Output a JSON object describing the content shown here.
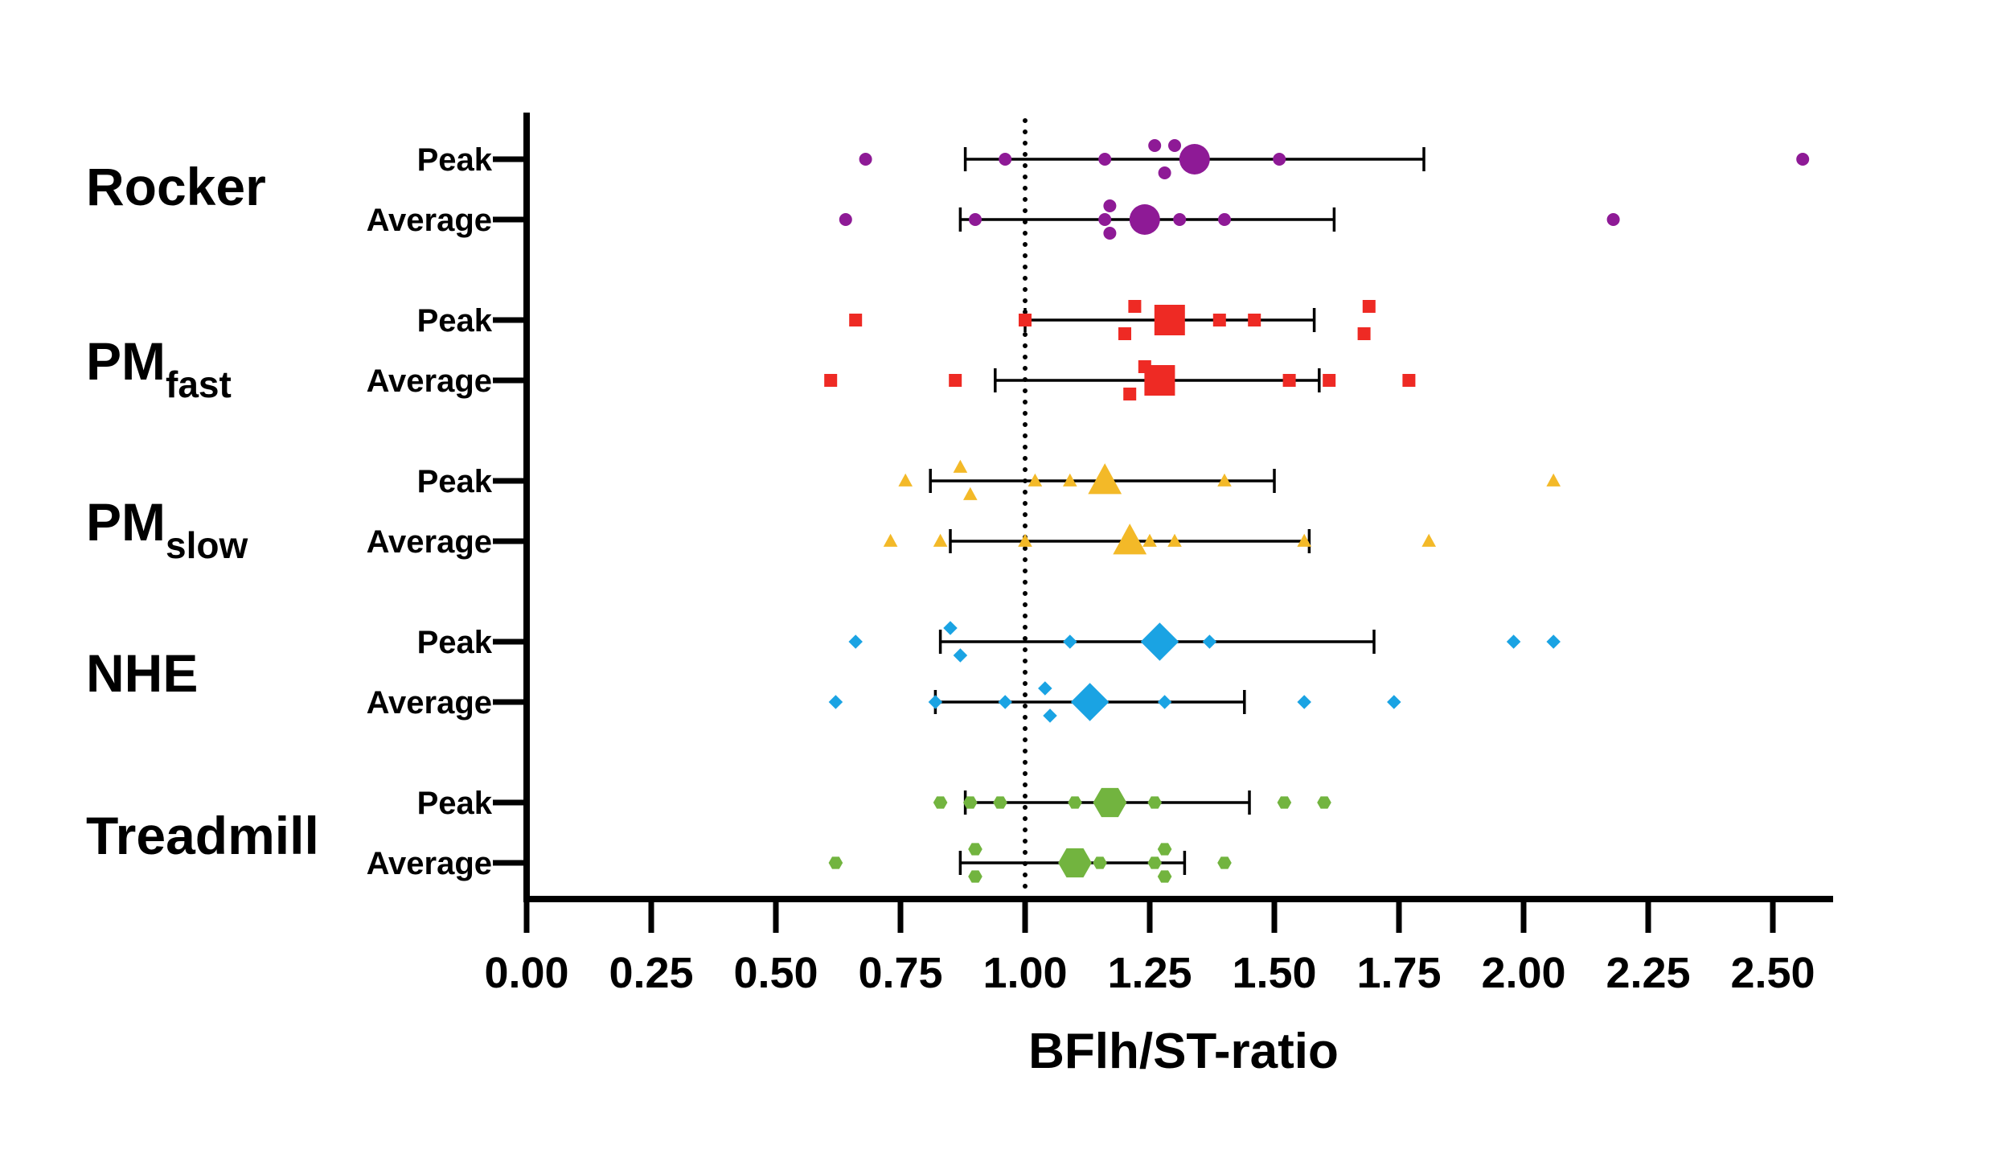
{
  "chart_data": {
    "type": "scatter",
    "xlabel": "BFlh/ST-ratio",
    "xlim": [
      0,
      2.6
    ],
    "xticks": [
      0.0,
      0.25,
      0.5,
      0.75,
      1.0,
      1.25,
      1.5,
      1.75,
      2.0,
      2.25,
      2.5
    ],
    "xtick_labels": [
      "0.00",
      "0.25",
      "0.50",
      "0.75",
      "1.00",
      "1.25",
      "1.50",
      "1.75",
      "2.00",
      "2.25",
      "2.50"
    ],
    "reference_line": 1.0,
    "groups": [
      {
        "label": "Rocker",
        "label_sub": "",
        "color": "#8e1a96",
        "marker": "circle",
        "rows": [
          {
            "label": "Peak",
            "mean": 1.34,
            "lower": 0.88,
            "upper": 1.8,
            "points": [
              0.68,
              0.96,
              1.16,
              1.26,
              1.28,
              1.3,
              1.51,
              2.56
            ],
            "jitter": [
              0,
              0,
              0,
              -1,
              1,
              -1,
              0,
              0
            ]
          },
          {
            "label": "Average",
            "mean": 1.24,
            "lower": 0.87,
            "upper": 1.62,
            "points": [
              0.64,
              0.9,
              1.16,
              1.17,
              1.17,
              1.31,
              1.4,
              2.18
            ],
            "jitter": [
              0,
              0,
              0,
              -1,
              1,
              0,
              0,
              0
            ]
          }
        ]
      },
      {
        "label": "PM",
        "label_sub": "fast",
        "color": "#ee2a24",
        "marker": "square",
        "rows": [
          {
            "label": "Peak",
            "mean": 1.29,
            "lower": 1.0,
            "upper": 1.58,
            "points": [
              0.66,
              1.0,
              1.2,
              1.22,
              1.39,
              1.46,
              1.68,
              1.69
            ],
            "jitter": [
              0,
              0,
              1,
              -1,
              0,
              0,
              1,
              -1
            ]
          },
          {
            "label": "Average",
            "mean": 1.27,
            "lower": 0.94,
            "upper": 1.59,
            "points": [
              0.61,
              0.86,
              1.21,
              1.24,
              1.53,
              1.61,
              1.77
            ],
            "jitter": [
              0,
              0,
              1,
              -1,
              0,
              0,
              0
            ]
          }
        ]
      },
      {
        "label": "PM",
        "label_sub": "slow",
        "color": "#f3b928",
        "marker": "triangle",
        "rows": [
          {
            "label": "Peak",
            "mean": 1.16,
            "lower": 0.81,
            "upper": 1.5,
            "points": [
              0.76,
              0.87,
              0.89,
              1.02,
              1.09,
              1.4,
              2.06
            ],
            "jitter": [
              0,
              -1,
              1,
              0,
              0,
              0,
              0
            ]
          },
          {
            "label": "Average",
            "mean": 1.21,
            "lower": 0.85,
            "upper": 1.57,
            "points": [
              0.73,
              0.83,
              1.0,
              1.25,
              1.3,
              1.56,
              1.81
            ],
            "jitter": [
              0,
              0,
              0,
              0,
              0,
              0,
              0
            ]
          }
        ]
      },
      {
        "label": "NHE",
        "label_sub": "",
        "color": "#1aa3e3",
        "marker": "diamond",
        "rows": [
          {
            "label": "Peak",
            "mean": 1.27,
            "lower": 0.83,
            "upper": 1.7,
            "points": [
              0.66,
              0.85,
              0.87,
              1.09,
              1.37,
              1.98,
              2.06
            ],
            "jitter": [
              0,
              -1,
              1,
              0,
              0,
              0,
              0
            ]
          },
          {
            "label": "Average",
            "mean": 1.13,
            "lower": 0.82,
            "upper": 1.44,
            "points": [
              0.62,
              0.82,
              0.96,
              1.04,
              1.05,
              1.28,
              1.56,
              1.74
            ],
            "jitter": [
              0,
              0,
              0,
              -1,
              1,
              0,
              0,
              0
            ]
          }
        ]
      },
      {
        "label": "Treadmill",
        "label_sub": "",
        "color": "#72b43f",
        "marker": "hexagon",
        "rows": [
          {
            "label": "Peak",
            "mean": 1.17,
            "lower": 0.88,
            "upper": 1.45,
            "points": [
              0.83,
              0.89,
              0.95,
              1.1,
              1.26,
              1.52,
              1.6
            ],
            "jitter": [
              0,
              0,
              0,
              0,
              0,
              0,
              0
            ]
          },
          {
            "label": "Average",
            "mean": 1.1,
            "lower": 0.87,
            "upper": 1.32,
            "points": [
              0.62,
              0.9,
              0.9,
              1.15,
              1.26,
              1.28,
              1.28,
              1.4
            ],
            "jitter": [
              0,
              -1,
              1,
              0,
              0,
              -1,
              1,
              0
            ]
          }
        ]
      }
    ]
  }
}
